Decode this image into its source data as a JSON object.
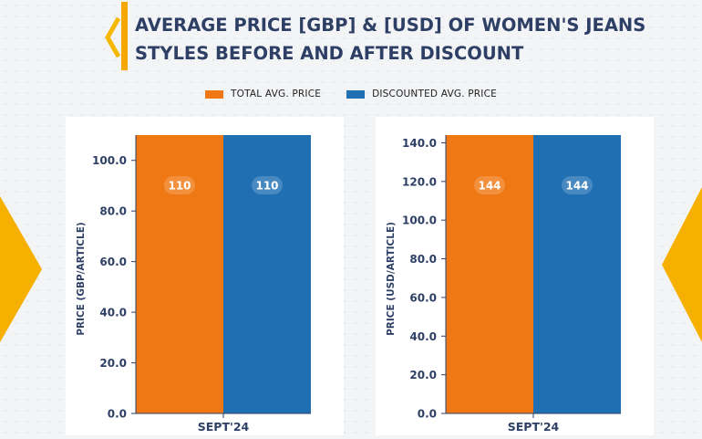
{
  "header": {
    "title_line1": "AVERAGE PRICE [GBP] & [USD] OF WOMEN'S JEANS",
    "title_line2": "STYLES BEFORE AND AFTER DISCOUNT"
  },
  "legend": {
    "items": [
      {
        "label": "TOTAL AVG. PRICE",
        "color": "#f07814"
      },
      {
        "label": "DISCOUNTED AVG. PRICE",
        "color": "#1f6fb2"
      }
    ]
  },
  "chart_data": [
    {
      "type": "bar",
      "categories": [
        "SEPT'24"
      ],
      "series": [
        {
          "name": "TOTAL AVG. PRICE",
          "values": [
            110
          ],
          "color": "#f07814"
        },
        {
          "name": "DISCOUNTED AVG. PRICE",
          "values": [
            110
          ],
          "color": "#1f6fb2"
        }
      ],
      "ylabel": "PRICE (GBP/ARTICLE)",
      "xlabel": "",
      "ylim": [
        0,
        110
      ],
      "yticks": [
        "0.0",
        "20.0",
        "40.0",
        "60.0",
        "80.0",
        "100.0"
      ],
      "data_labels": [
        "110",
        "110"
      ],
      "grid": false
    },
    {
      "type": "bar",
      "categories": [
        "SEPT'24"
      ],
      "series": [
        {
          "name": "TOTAL AVG. PRICE",
          "values": [
            144
          ],
          "color": "#f07814"
        },
        {
          "name": "DISCOUNTED AVG. PRICE",
          "values": [
            144
          ],
          "color": "#1f6fb2"
        }
      ],
      "ylabel": "PRICE (USD/ARTICLE)",
      "xlabel": "",
      "ylim": [
        0,
        144
      ],
      "yticks": [
        "0.0",
        "20.0",
        "40.0",
        "60.0",
        "80.0",
        "100.0",
        "120.0",
        "140.0"
      ],
      "data_labels": [
        "144",
        "144"
      ],
      "grid": false
    }
  ]
}
